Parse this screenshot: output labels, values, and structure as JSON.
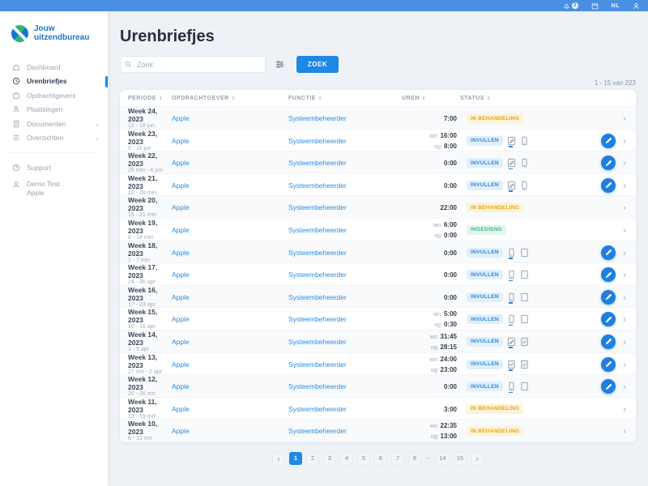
{
  "topbar": {
    "notifications_badge": "2",
    "language": "NL"
  },
  "sidebar": {
    "logo": {
      "line1": "Jouw",
      "line2": "uitzendbureau"
    },
    "items": [
      {
        "label": "Dashboard",
        "icon": "home-icon",
        "active": false,
        "chevron": false
      },
      {
        "label": "Urenbriefjes",
        "icon": "clock-icon",
        "active": true,
        "chevron": false
      },
      {
        "label": "Opdrachtgevers",
        "icon": "briefcase-icon",
        "active": false,
        "chevron": false
      },
      {
        "label": "Plaatsingen",
        "icon": "placement-icon",
        "active": false,
        "chevron": false
      },
      {
        "label": "Documenten",
        "icon": "document-icon",
        "active": false,
        "chevron": true
      },
      {
        "label": "Overzichten",
        "icon": "list-icon",
        "active": false,
        "chevron": true
      }
    ],
    "support_label": "Support",
    "user": {
      "name": "Demo Test",
      "company": "Apple"
    }
  },
  "header": {
    "title": "Urenbriefjes",
    "search_placeholder": "Zoek",
    "search_button": "ZOEK"
  },
  "table": {
    "count": "1 - 15 van 223",
    "columns": [
      "Periode",
      "Opdrachtgever",
      "Functie",
      "Uren",
      "Status"
    ],
    "rows": [
      {
        "week": "Week 24, 2023",
        "dates": "12 - 18 jun",
        "client": "Apple",
        "role": "Systeembeheerder",
        "hours": [
          {
            "label": "",
            "value": "7:00"
          }
        ],
        "status": "IN BEHANDELING",
        "status_type": "pending",
        "icons": [],
        "editable": false
      },
      {
        "week": "Week 23, 2023",
        "dates": "5 - 11 jun",
        "client": "Apple",
        "role": "Systeembeheerder",
        "hours": [
          {
            "label": "wn:",
            "value": "16:00"
          },
          {
            "label": "og:",
            "value": "8:00"
          }
        ],
        "status": "INVULLEN",
        "status_type": "fill",
        "icons": [
          "edit-doc-icon",
          "phone-icon"
        ],
        "editable": true
      },
      {
        "week": "Week 22, 2023",
        "dates": "29 mei - 4 jun",
        "client": "Apple",
        "role": "Systeembeheerder",
        "hours": [
          {
            "label": "",
            "value": "0:00"
          }
        ],
        "status": "INVULLEN",
        "status_type": "fill",
        "icons": [
          "edit-doc-icon",
          "phone-icon"
        ],
        "editable": true
      },
      {
        "week": "Week 21, 2023",
        "dates": "22 - 28 mei",
        "client": "Apple",
        "role": "Systeembeheerder",
        "hours": [
          {
            "label": "",
            "value": "0:00"
          }
        ],
        "status": "INVULLEN",
        "status_type": "fill",
        "icons": [
          "edit-doc-icon",
          "phone-icon"
        ],
        "editable": true
      },
      {
        "week": "Week 20, 2023",
        "dates": "15 - 21 mei",
        "client": "Apple",
        "role": "Systeembeheerder",
        "hours": [
          {
            "label": "",
            "value": "22:00"
          }
        ],
        "status": "IN BEHANDELING",
        "status_type": "pending",
        "icons": [],
        "editable": false
      },
      {
        "week": "Week 19, 2023",
        "dates": "8 - 14 mei",
        "client": "Apple",
        "role": "Systeembeheerder",
        "hours": [
          {
            "label": "wn:",
            "value": "6:00"
          },
          {
            "label": "og:",
            "value": "0:00"
          }
        ],
        "status": "INGEDIEND",
        "status_type": "submitted",
        "icons": [],
        "editable": false
      },
      {
        "week": "Week 18, 2023",
        "dates": "1 - 7 mei",
        "client": "Apple",
        "role": "Systeembeheerder",
        "hours": [
          {
            "label": "",
            "value": "0:00"
          }
        ],
        "status": "INVULLEN",
        "status_type": "fill",
        "icons": [
          "phone-icon",
          "square-icon"
        ],
        "editable": true
      },
      {
        "week": "Week 17, 2023",
        "dates": "24 - 30 apr",
        "client": "Apple",
        "role": "Systeembeheerder",
        "hours": [
          {
            "label": "",
            "value": "0:00"
          }
        ],
        "status": "INVULLEN",
        "status_type": "fill",
        "icons": [
          "phone-icon",
          "square-icon"
        ],
        "editable": true
      },
      {
        "week": "Week 16, 2023",
        "dates": "17 - 23 apr",
        "client": "Apple",
        "role": "Systeembeheerder",
        "hours": [
          {
            "label": "",
            "value": "0:00"
          }
        ],
        "status": "INVULLEN",
        "status_type": "fill",
        "icons": [
          "phone-icon",
          "square-icon"
        ],
        "editable": true
      },
      {
        "week": "Week 15, 2023",
        "dates": "10 - 16 apr",
        "client": "Apple",
        "role": "Systeembeheerder",
        "hours": [
          {
            "label": "wn:",
            "value": "5:00"
          },
          {
            "label": "og:",
            "value": "0:30"
          }
        ],
        "status": "INVULLEN",
        "status_type": "fill",
        "icons": [
          "phone-icon",
          "square-icon"
        ],
        "editable": true
      },
      {
        "week": "Week 14, 2023",
        "dates": "3 - 9 apr",
        "client": "Apple",
        "role": "Systeembeheerder",
        "hours": [
          {
            "label": "wn:",
            "value": "31:45"
          },
          {
            "label": "og:",
            "value": "28:15"
          }
        ],
        "status": "INVULLEN",
        "status_type": "fill",
        "icons": [
          "edit-doc-icon",
          "check-square-icon"
        ],
        "editable": true
      },
      {
        "week": "Week 13, 2023",
        "dates": "27 mrt - 2 apr",
        "client": "Apple",
        "role": "Systeembeheerder",
        "hours": [
          {
            "label": "wn:",
            "value": "24:00"
          },
          {
            "label": "og:",
            "value": "23:00"
          }
        ],
        "status": "INVULLEN",
        "status_type": "fill",
        "icons": [
          "check-square-icon",
          "check-square-icon"
        ],
        "editable": true
      },
      {
        "week": "Week 12, 2023",
        "dates": "20 - 26 mrt",
        "client": "Apple",
        "role": "Systeembeheerder",
        "hours": [
          {
            "label": "",
            "value": "0:00"
          }
        ],
        "status": "INVULLEN",
        "status_type": "fill",
        "icons": [
          "phone-icon",
          "square-icon"
        ],
        "editable": true
      },
      {
        "week": "Week 11, 2023",
        "dates": "13 - 19 mrt",
        "client": "Apple",
        "role": "Systeembeheerder",
        "hours": [
          {
            "label": "",
            "value": "3:00"
          }
        ],
        "status": "IN BEHANDELING",
        "status_type": "pending",
        "icons": [],
        "editable": false
      },
      {
        "week": "Week 10, 2023",
        "dates": "6 - 12 mrt",
        "client": "Apple",
        "role": "Systeembeheerder",
        "hours": [
          {
            "label": "wn:",
            "value": "22:35"
          },
          {
            "label": "og:",
            "value": "13:00"
          }
        ],
        "status": "IN BEHANDELING",
        "status_type": "pending",
        "icons": [],
        "editable": false
      }
    ]
  },
  "pagination": {
    "prev": "‹",
    "next": "›",
    "pages": [
      "1",
      "2",
      "3",
      "4",
      "5",
      "6",
      "7",
      "8",
      "–",
      "14",
      "15"
    ],
    "active": "1"
  },
  "colors": {
    "accent": "#1e88e5",
    "topbar": "#4a90e2",
    "status_fill": "#1e88e5",
    "status_pending": "#e3a418",
    "status_submitted": "#41b883",
    "logo_blue": "#1b75d0",
    "logo_green": "#2bb673"
  }
}
